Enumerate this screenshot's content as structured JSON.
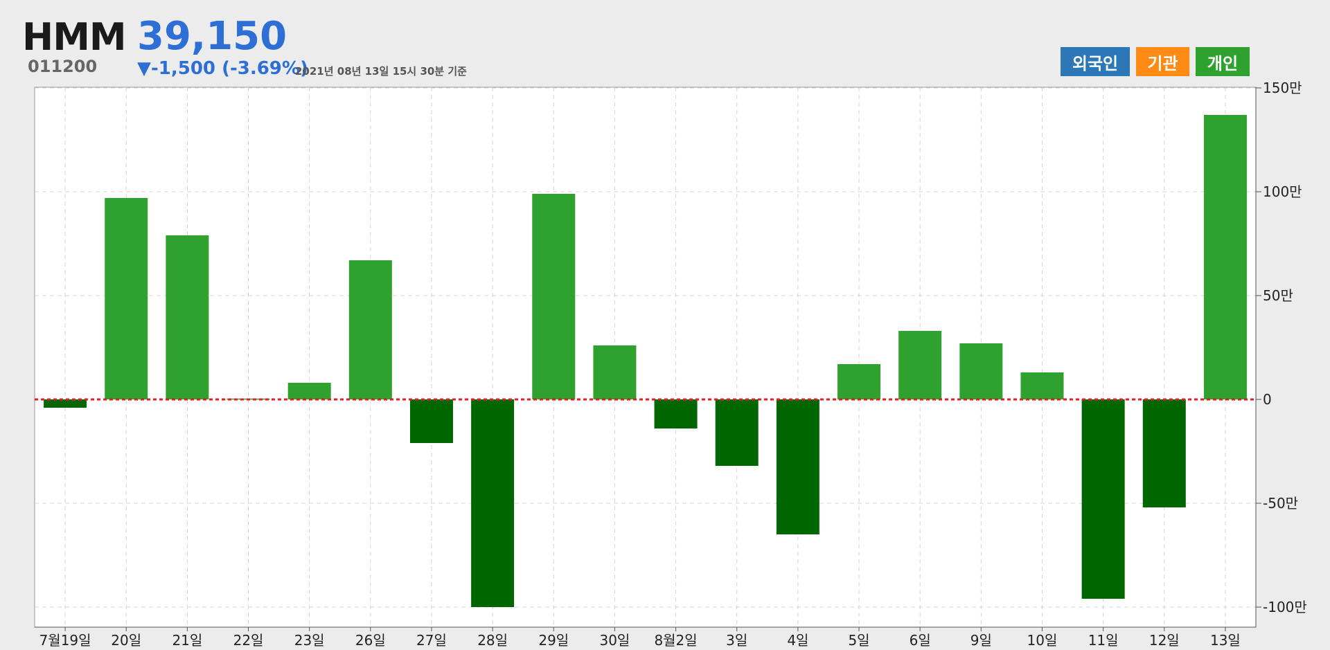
{
  "stock": {
    "name": "HMM",
    "code": "011200",
    "price": "39,150",
    "change": "▼-1,500 (-3.69%)",
    "timestamp": "2021년 08년 13일 15시 30분 기준"
  },
  "legend": {
    "foreign": {
      "label": "외국인",
      "color": "#2b77b8"
    },
    "institution": {
      "label": "기관",
      "color": "#ff8a14"
    },
    "individual": {
      "label": "개인",
      "color": "#2ea12e"
    }
  },
  "chart_data": {
    "type": "bar",
    "categories": [
      "7월19일",
      "20일",
      "21일",
      "22일",
      "23일",
      "26일",
      "27일",
      "28일",
      "29일",
      "30일",
      "8월2일",
      "3일",
      "4일",
      "5일",
      "6일",
      "9일",
      "10일",
      "11일",
      "12일",
      "13일"
    ],
    "series": [
      {
        "name": "개인",
        "values": [
          -40000,
          970000,
          790000,
          4000,
          80000,
          670000,
          -210000,
          -1000000,
          990000,
          260000,
          -140000,
          -320000,
          -650000,
          170000,
          330000,
          270000,
          130000,
          -960000,
          -520000,
          1370000
        ]
      }
    ],
    "ylim": [
      -1100000,
      1500000
    ],
    "yticks": [
      150,
      100,
      50,
      0,
      -50,
      -100
    ],
    "ytick_labels": [
      "150만",
      "100만",
      "50만",
      "0",
      "-50만",
      "-100만"
    ],
    "positive_color": "#2ea12e",
    "negative_color": "#006600",
    "zero_line_color": "#e02020",
    "grid": true
  }
}
